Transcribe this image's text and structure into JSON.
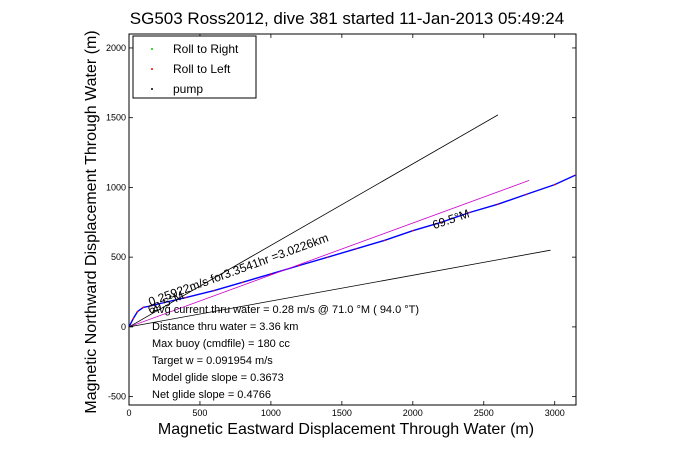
{
  "chart_data": {
    "type": "line",
    "title": "SG503 Ross2012, dive 381 started 11-Jan-2013 05:49:24",
    "xlabel": "Magnetic Eastward Displacement Through Water (m)",
    "ylabel": "Magnetic Northward Displacement Through Water (m)",
    "xlim": [
      0,
      3150
    ],
    "ylim": [
      -560,
      2100
    ],
    "xticks": [
      0,
      500,
      1000,
      1500,
      2000,
      2500,
      3000
    ],
    "yticks": [
      -500,
      0,
      500,
      1000,
      1500,
      2000
    ],
    "legend": {
      "placement": "top-left",
      "entries": [
        {
          "label": "Roll to Right",
          "color": "#00cc00",
          "marker": "dot"
        },
        {
          "label": "Roll to Left",
          "color": "#ff0000",
          "marker": "dot"
        },
        {
          "label": "pump",
          "color": "#000000",
          "marker": "dot"
        }
      ]
    },
    "series": [
      {
        "color": "#0000ff",
        "style": "track",
        "x": [
          0,
          30,
          60,
          100,
          150,
          250,
          400,
          600,
          800,
          1000,
          1200,
          1400,
          1600,
          1800,
          2000,
          2200,
          2400,
          2600,
          2800,
          3000,
          3150
        ],
        "y": [
          0,
          60,
          110,
          140,
          150,
          175,
          210,
          260,
          320,
          380,
          440,
          500,
          560,
          620,
          690,
          750,
          820,
          880,
          950,
          1020,
          1090
        ]
      },
      {
        "color": "#cc00cc",
        "style": "line",
        "x": [
          0,
          2820
        ],
        "y": [
          0,
          1050
        ]
      },
      {
        "color": "#000000",
        "style": "line",
        "x": [
          0,
          2600
        ],
        "y": [
          0,
          1520
        ]
      },
      {
        "color": "#000000",
        "style": "line",
        "x": [
          0,
          2970
        ],
        "y": [
          0,
          550
        ]
      }
    ],
    "annotations": [
      {
        "text": "69.5°M",
        "x": 2150,
        "y": 700,
        "angle": -19
      },
      {
        "text": "69.5°M",
        "x": 150,
        "y": 90,
        "angle": -25
      },
      {
        "text": "0.25922m/s for3.3541hr =3.0226km",
        "x": 150,
        "y": 150,
        "angle": -20
      }
    ],
    "stats": [
      "Avg current thru water =  0.28 m/s @  71.0   °M ( 94.0 °T)",
      "Distance thru water =  3.36 km",
      "Max buoy (cmdfile) = 180 cc",
      "Target w = 0.091954 m/s",
      "Model glide slope = 0.3673",
      "Net glide slope = 0.4766"
    ]
  }
}
